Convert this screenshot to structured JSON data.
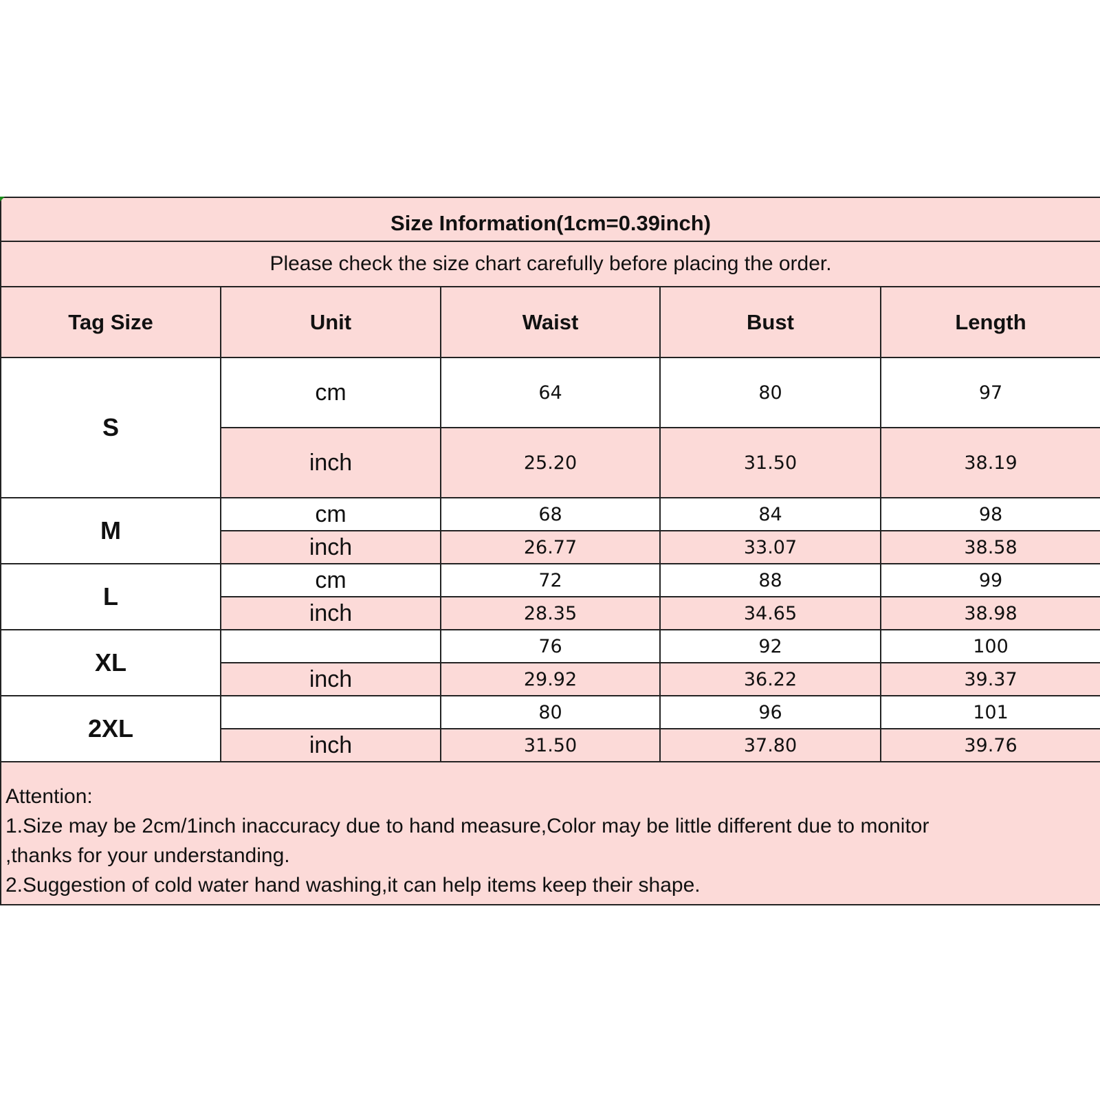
{
  "title": "Size Information(1cm=0.39inch)",
  "subtitle": "Please check the size chart carefully before placing the order.",
  "headers": [
    "Tag Size",
    "Unit",
    "Waist",
    "Bust",
    "Length"
  ],
  "sizes": [
    {
      "tag": "S",
      "rows": [
        {
          "unit": "cm",
          "waist": "64",
          "bust": "80",
          "length": "97"
        },
        {
          "unit": "inch",
          "waist": "25.20",
          "bust": "31.50",
          "length": "38.19"
        }
      ]
    },
    {
      "tag": "M",
      "rows": [
        {
          "unit": "cm",
          "waist": "68",
          "bust": "84",
          "length": "98"
        },
        {
          "unit": "inch",
          "waist": "26.77",
          "bust": "33.07",
          "length": "38.58"
        }
      ]
    },
    {
      "tag": "L",
      "rows": [
        {
          "unit": "cm",
          "waist": "72",
          "bust": "88",
          "length": "99"
        },
        {
          "unit": "inch",
          "waist": "28.35",
          "bust": "34.65",
          "length": "38.98"
        }
      ]
    },
    {
      "tag": "XL",
      "rows": [
        {
          "unit": "",
          "waist": "76",
          "bust": "92",
          "length": "100"
        },
        {
          "unit": "inch",
          "waist": "29.92",
          "bust": "36.22",
          "length": "39.37"
        }
      ]
    },
    {
      "tag": "2XL",
      "rows": [
        {
          "unit": "",
          "waist": "80",
          "bust": "96",
          "length": "101"
        },
        {
          "unit": "inch",
          "waist": "31.50",
          "bust": "37.80",
          "length": "39.76"
        }
      ]
    }
  ],
  "attention": {
    "heading": "Attention:",
    "lines": [
      "1.Size may be 2cm/1inch inaccuracy due to hand measure,Color may be little different due to monitor",
      ",thanks for your understanding.",
      "2.Suggestion of cold water hand washing,it can help items keep their shape."
    ]
  },
  "colors": {
    "header_bg": "#fcdad8",
    "border": "#222222"
  }
}
